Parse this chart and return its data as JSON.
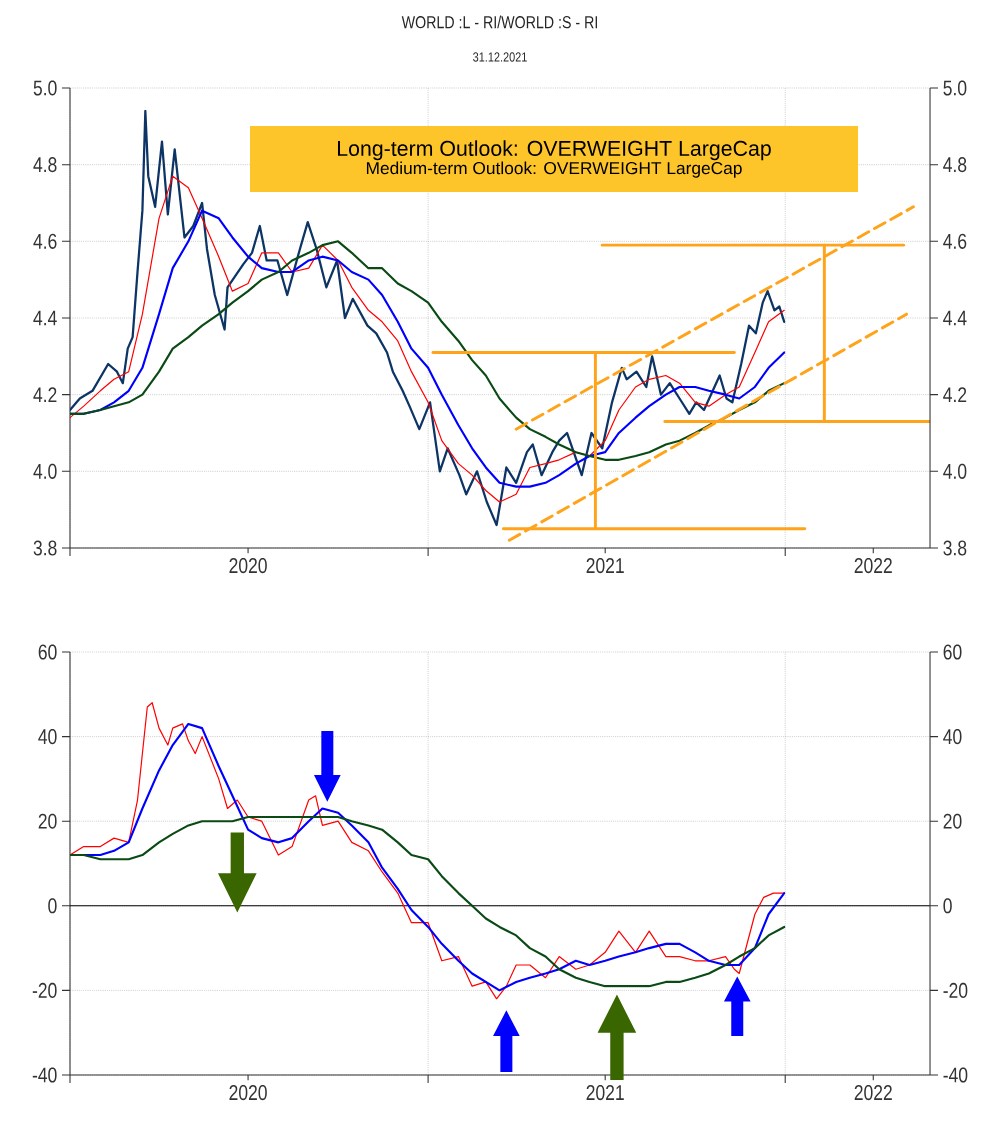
{
  "chart_data": [
    {
      "type": "line",
      "title": "WORLD :L - RI/WORLD :S - RI",
      "subtitle": "31.12.2021",
      "annotations": [
        "Long-term Outlook: OVERWEIGHT LargeCap",
        "Medium-term Outlook: OVERWEIGHT LargeCap"
      ],
      "xlim": [
        "2020-01-01",
        "2022-05-29"
      ],
      "xticks": [
        {
          "value": "2020-01-01",
          "label": null
        },
        {
          "value": "2020-07-01",
          "label": "2020"
        },
        {
          "value": "2021-01-01",
          "label": null
        },
        {
          "value": "2021-07-01",
          "label": "2021"
        },
        {
          "value": "2022-01-01",
          "label": null
        },
        {
          "value": "2022-04-01",
          "label": "2022"
        }
      ],
      "ylim": [
        3.8,
        5.0
      ],
      "yticks": [
        3.8,
        {
          "value": 4.0,
          "label": "4.0"
        },
        4.2,
        4.4,
        4.6,
        4.8,
        {
          "value": 5.0,
          "label": "5.0"
        }
      ],
      "y2lim": [
        3.8,
        5.0
      ],
      "y2ticks": [
        3.8,
        {
          "value": 4.0,
          "label": "4.0"
        },
        4.2,
        4.4,
        4.6,
        4.8,
        {
          "value": 5.0,
          "label": "5.0"
        }
      ],
      "grid": true,
      "series": [
        {
          "color": "#0c3566",
          "x": [
            "2020-01-01",
            "2020-01-11",
            "2020-01-24",
            "2020-02-09",
            "2020-02-18",
            "2020-02-24",
            "2020-02-29",
            "2020-03-05",
            "2020-03-10",
            "2020-03-15",
            "2020-03-18",
            "2020-03-21",
            "2020-03-28",
            "2020-04-04",
            "2020-04-10",
            "2020-04-17",
            "2020-04-27",
            "2020-05-06",
            "2020-05-15",
            "2020-05-20",
            "2020-05-28",
            "2020-06-07",
            "2020-06-10",
            "2020-06-26",
            "2020-07-05",
            "2020-07-13",
            "2020-07-20",
            "2020-07-31",
            "2020-08-10",
            "2020-08-23",
            "2020-08-31",
            "2020-09-09",
            "2020-09-19",
            "2020-09-30",
            "2020-10-08",
            "2020-10-16",
            "2020-10-31",
            "2020-11-09",
            "2020-11-20",
            "2020-11-26",
            "2020-12-06",
            "2020-12-13",
            "2020-12-23",
            "2021-01-03",
            "2021-01-13",
            "2021-01-21",
            "2021-02-02",
            "2021-02-09",
            "2021-02-20",
            "2021-03-02",
            "2021-03-12",
            "2021-03-22",
            "2021-04-01",
            "2021-04-12",
            "2021-04-18",
            "2021-04-27",
            "2021-05-08",
            "2021-05-15",
            "2021-05-23",
            "2021-06-07",
            "2021-06-17",
            "2021-06-28",
            "2021-07-08",
            "2021-07-18",
            "2021-07-23",
            "2021-08-02",
            "2021-08-12",
            "2021-08-18",
            "2021-08-27",
            "2021-09-05",
            "2021-09-15",
            "2021-09-25",
            "2021-10-02",
            "2021-10-10",
            "2021-10-26",
            "2021-11-02",
            "2021-11-08",
            "2021-11-17",
            "2021-11-25",
            "2021-12-02",
            "2021-12-09",
            "2021-12-14",
            "2021-12-21",
            "2021-12-26",
            "2021-12-31"
          ],
          "values": [
            4.16,
            4.19,
            4.21,
            4.28,
            4.26,
            4.23,
            4.32,
            4.35,
            4.52,
            4.68,
            4.94,
            4.77,
            4.69,
            4.86,
            4.67,
            4.84,
            4.61,
            4.64,
            4.7,
            4.58,
            4.46,
            4.37,
            4.48,
            4.54,
            4.57,
            4.64,
            4.55,
            4.55,
            4.46,
            4.58,
            4.65,
            4.58,
            4.48,
            4.55,
            4.4,
            4.45,
            4.38,
            4.36,
            4.31,
            4.26,
            4.21,
            4.17,
            4.11,
            4.18,
            4.0,
            4.06,
            3.99,
            3.94,
            4.0,
            3.92,
            3.86,
            4.01,
            3.97,
            4.05,
            4.07,
            3.99,
            4.05,
            4.08,
            4.1,
            3.99,
            4.1,
            4.06,
            4.18,
            4.27,
            4.24,
            4.26,
            4.22,
            4.3,
            4.2,
            4.23,
            4.19,
            4.15,
            4.18,
            4.16,
            4.25,
            4.19,
            4.18,
            4.28,
            4.38,
            4.36,
            4.44,
            4.47,
            4.42,
            4.43,
            4.39
          ]
        },
        {
          "color": "#ff0000",
          "x": [
            "2020-01-01",
            "2020-01-15",
            "2020-02-01",
            "2020-02-15",
            "2020-03-01",
            "2020-03-15",
            "2020-04-01",
            "2020-04-15",
            "2020-05-01",
            "2020-05-15",
            "2020-06-01",
            "2020-06-15",
            "2020-07-01",
            "2020-07-15",
            "2020-08-01",
            "2020-08-15",
            "2020-09-01",
            "2020-09-15",
            "2020-10-01",
            "2020-10-15",
            "2020-11-01",
            "2020-11-15",
            "2020-12-01",
            "2020-12-15",
            "2021-01-01",
            "2021-01-15",
            "2021-02-01",
            "2021-02-15",
            "2021-03-01",
            "2021-03-15",
            "2021-04-01",
            "2021-04-15",
            "2021-05-01",
            "2021-05-15",
            "2021-06-01",
            "2021-06-15",
            "2021-07-01",
            "2021-07-15",
            "2021-08-01",
            "2021-08-15",
            "2021-09-01",
            "2021-09-15",
            "2021-10-01",
            "2021-10-15",
            "2021-11-01",
            "2021-11-15",
            "2021-12-01",
            "2021-12-15",
            "2021-12-31"
          ],
          "values": [
            4.14,
            4.17,
            4.21,
            4.24,
            4.26,
            4.41,
            4.66,
            4.77,
            4.74,
            4.66,
            4.56,
            4.47,
            4.49,
            4.57,
            4.57,
            4.52,
            4.53,
            4.59,
            4.55,
            4.48,
            4.42,
            4.39,
            4.34,
            4.26,
            4.18,
            4.08,
            4.02,
            3.99,
            3.95,
            3.92,
            3.94,
            4.01,
            4.02,
            4.03,
            4.05,
            4.04,
            4.08,
            4.16,
            4.22,
            4.24,
            4.25,
            4.23,
            4.18,
            4.17,
            4.2,
            4.22,
            4.31,
            4.39,
            4.42
          ]
        },
        {
          "color": "#0000ff",
          "x": [
            "2020-01-01",
            "2020-01-15",
            "2020-02-01",
            "2020-02-15",
            "2020-03-01",
            "2020-03-15",
            "2020-04-01",
            "2020-04-15",
            "2020-05-01",
            "2020-05-15",
            "2020-06-01",
            "2020-06-15",
            "2020-07-01",
            "2020-07-15",
            "2020-08-01",
            "2020-08-15",
            "2020-09-01",
            "2020-09-15",
            "2020-10-01",
            "2020-10-15",
            "2020-11-01",
            "2020-11-15",
            "2020-12-01",
            "2020-12-15",
            "2021-01-01",
            "2021-01-15",
            "2021-02-01",
            "2021-02-15",
            "2021-03-01",
            "2021-03-15",
            "2021-04-01",
            "2021-04-15",
            "2021-05-01",
            "2021-05-15",
            "2021-06-01",
            "2021-06-15",
            "2021-07-01",
            "2021-07-15",
            "2021-08-01",
            "2021-08-15",
            "2021-09-01",
            "2021-09-15",
            "2021-10-01",
            "2021-10-15",
            "2021-11-01",
            "2021-11-15",
            "2021-12-01",
            "2021-12-15",
            "2021-12-31"
          ],
          "values": [
            4.15,
            4.15,
            4.16,
            4.18,
            4.21,
            4.27,
            4.41,
            4.53,
            4.6,
            4.68,
            4.66,
            4.61,
            4.56,
            4.53,
            4.52,
            4.52,
            4.55,
            4.56,
            4.55,
            4.52,
            4.5,
            4.46,
            4.39,
            4.32,
            4.27,
            4.2,
            4.12,
            4.06,
            4.01,
            3.97,
            3.96,
            3.96,
            3.97,
            3.99,
            4.02,
            4.04,
            4.05,
            4.1,
            4.14,
            4.17,
            4.2,
            4.22,
            4.22,
            4.21,
            4.2,
            4.19,
            4.22,
            4.27,
            4.31
          ]
        },
        {
          "color": "#0a4a14",
          "x": [
            "2020-01-01",
            "2020-01-15",
            "2020-02-01",
            "2020-02-15",
            "2020-03-01",
            "2020-03-15",
            "2020-04-01",
            "2020-04-15",
            "2020-05-01",
            "2020-05-15",
            "2020-06-01",
            "2020-06-15",
            "2020-07-01",
            "2020-07-15",
            "2020-08-01",
            "2020-08-15",
            "2020-09-01",
            "2020-09-15",
            "2020-10-01",
            "2020-10-15",
            "2020-11-01",
            "2020-11-15",
            "2020-12-01",
            "2020-12-15",
            "2021-01-01",
            "2021-01-15",
            "2021-02-01",
            "2021-02-15",
            "2021-03-01",
            "2021-03-15",
            "2021-04-01",
            "2021-04-15",
            "2021-05-01",
            "2021-05-15",
            "2021-06-01",
            "2021-06-15",
            "2021-07-01",
            "2021-07-15",
            "2021-08-01",
            "2021-08-15",
            "2021-09-01",
            "2021-09-15",
            "2021-10-01",
            "2021-10-15",
            "2021-11-01",
            "2021-11-15",
            "2021-12-01",
            "2021-12-15",
            "2021-12-31"
          ],
          "values": [
            4.15,
            4.15,
            4.16,
            4.17,
            4.18,
            4.2,
            4.26,
            4.32,
            4.35,
            4.38,
            4.41,
            4.44,
            4.47,
            4.5,
            4.52,
            4.55,
            4.57,
            4.59,
            4.6,
            4.57,
            4.53,
            4.53,
            4.49,
            4.47,
            4.44,
            4.39,
            4.34,
            4.29,
            4.25,
            4.19,
            4.14,
            4.11,
            4.09,
            4.07,
            4.05,
            4.04,
            4.03,
            4.03,
            4.04,
            4.05,
            4.07,
            4.08,
            4.1,
            4.12,
            4.14,
            4.16,
            4.18,
            4.21,
            4.23
          ]
        },
        {
          "color": "#ffa31a",
          "x": [
            "2021-01-06",
            "2021-11-10"
          ],
          "values": [
            4.31,
            4.31
          ]
        },
        {
          "color": "#ffa31a",
          "x": [
            "2021-06-28",
            "2022-05-02"
          ],
          "values": [
            4.59,
            4.59
          ]
        },
        {
          "color": "#ffa31a",
          "x": [
            "2021-08-31",
            "2022-05-29"
          ],
          "values": [
            4.13,
            4.13
          ]
        },
        {
          "color": "#ffa31a",
          "x": [
            "2021-03-19",
            "2022-01-21"
          ],
          "values": [
            3.85,
            3.85
          ]
        },
        {
          "color": "#ffa31a",
          "x": [
            "2021-06-21",
            "2021-06-21"
          ],
          "values": [
            3.85,
            4.31
          ]
        },
        {
          "color": "#ffa31a",
          "x": [
            "2022-02-10",
            "2022-02-10"
          ],
          "values": [
            4.13,
            4.59
          ]
        },
        {
          "color": "#ffa31a",
          "line_style": "dashed",
          "x": [
            "2021-04-01",
            "2022-05-12"
          ],
          "values": [
            4.11,
            4.69
          ]
        },
        {
          "color": "#ffa31a",
          "line_style": "dashed",
          "x": [
            "2021-03-25",
            "2022-05-05"
          ],
          "values": [
            3.82,
            4.41
          ]
        }
      ]
    },
    {
      "type": "line",
      "xlim": [
        "2020-01-01",
        "2022-05-29"
      ],
      "xticks": [
        {
          "value": "2020-01-01",
          "label": null
        },
        {
          "value": "2020-07-01",
          "label": "2020"
        },
        {
          "value": "2021-01-01",
          "label": null
        },
        {
          "value": "2021-07-01",
          "label": "2021"
        },
        {
          "value": "2022-01-01",
          "label": null
        },
        {
          "value": "2022-04-01",
          "label": "2022"
        }
      ],
      "ylim": [
        -40,
        60
      ],
      "yticks": [
        -40,
        -20,
        0,
        20,
        40,
        60
      ],
      "y2lim": [
        -40,
        60
      ],
      "y2ticks": [
        -40,
        -20,
        0,
        20,
        40,
        60
      ],
      "grid": true,
      "ref_lines": [
        {
          "axis": "y",
          "value": 0,
          "color": "#000000"
        }
      ],
      "series": [
        {
          "color": "#ff0000",
          "x": [
            "2020-01-01",
            "2020-01-15",
            "2020-02-01",
            "2020-02-15",
            "2020-03-01",
            "2020-03-10",
            "2020-03-20",
            "2020-03-25",
            "2020-04-01",
            "2020-04-10",
            "2020-04-15",
            "2020-04-25",
            "2020-05-01",
            "2020-05-08",
            "2020-05-15",
            "2020-06-01",
            "2020-06-10",
            "2020-06-20",
            "2020-07-01",
            "2020-07-15",
            "2020-08-01",
            "2020-08-15",
            "2020-09-01",
            "2020-09-08",
            "2020-09-15",
            "2020-10-01",
            "2020-10-15",
            "2020-11-01",
            "2020-11-15",
            "2020-12-01",
            "2020-12-15",
            "2021-01-01",
            "2021-01-15",
            "2021-02-01",
            "2021-02-15",
            "2021-03-01",
            "2021-03-12",
            "2021-03-22",
            "2021-04-01",
            "2021-04-15",
            "2021-05-01",
            "2021-05-15",
            "2021-06-01",
            "2021-06-15",
            "2021-07-01",
            "2021-07-15",
            "2021-08-01",
            "2021-08-15",
            "2021-09-01",
            "2021-09-15",
            "2021-10-01",
            "2021-10-15",
            "2021-11-01",
            "2021-11-10",
            "2021-11-15",
            "2021-12-01",
            "2021-12-10",
            "2021-12-20",
            "2021-12-31"
          ],
          "values": [
            12,
            14,
            14,
            16,
            15,
            25,
            47,
            48,
            42,
            38,
            42,
            43,
            39,
            36,
            40,
            30,
            23,
            25,
            21,
            20,
            12,
            14,
            25,
            26,
            19,
            20,
            15,
            13,
            8,
            3,
            -4,
            -4,
            -13,
            -12,
            -19,
            -18,
            -22,
            -19,
            -14,
            -14,
            -17,
            -12,
            -15,
            -14,
            -11,
            -6,
            -11,
            -6,
            -12,
            -12,
            -13,
            -13,
            -12,
            -15,
            -16,
            -2,
            2,
            3,
            3
          ]
        },
        {
          "color": "#0000ff",
          "x": [
            "2020-01-01",
            "2020-01-15",
            "2020-02-01",
            "2020-02-15",
            "2020-03-01",
            "2020-03-15",
            "2020-04-01",
            "2020-04-15",
            "2020-05-01",
            "2020-05-15",
            "2020-06-01",
            "2020-06-15",
            "2020-07-01",
            "2020-07-15",
            "2020-08-01",
            "2020-08-15",
            "2020-09-01",
            "2020-09-15",
            "2020-10-01",
            "2020-10-15",
            "2020-11-01",
            "2020-11-15",
            "2020-12-01",
            "2020-12-15",
            "2021-01-01",
            "2021-01-15",
            "2021-02-01",
            "2021-02-15",
            "2021-03-01",
            "2021-03-15",
            "2021-04-01",
            "2021-04-15",
            "2021-05-01",
            "2021-05-15",
            "2021-06-01",
            "2021-06-15",
            "2021-07-01",
            "2021-07-15",
            "2021-08-01",
            "2021-08-15",
            "2021-09-01",
            "2021-09-15",
            "2021-10-01",
            "2021-10-15",
            "2021-11-01",
            "2021-11-15",
            "2021-12-01",
            "2021-12-15",
            "2021-12-31"
          ],
          "values": [
            12,
            12,
            12,
            13,
            15,
            23,
            32,
            38,
            43,
            42,
            33,
            26,
            18,
            16,
            15,
            16,
            20,
            23,
            22,
            19,
            15,
            9,
            4,
            -1,
            -5,
            -9,
            -13,
            -16,
            -18,
            -20,
            -18,
            -17,
            -16,
            -15,
            -13,
            -14,
            -13,
            -12,
            -11,
            -10,
            -9,
            -9,
            -11,
            -13,
            -14,
            -14,
            -10,
            -2,
            3
          ]
        },
        {
          "color": "#0a4a14",
          "x": [
            "2020-01-01",
            "2020-01-15",
            "2020-02-01",
            "2020-02-15",
            "2020-03-01",
            "2020-03-15",
            "2020-04-01",
            "2020-04-15",
            "2020-05-01",
            "2020-05-15",
            "2020-06-01",
            "2020-06-15",
            "2020-07-01",
            "2020-07-15",
            "2020-08-01",
            "2020-08-15",
            "2020-09-01",
            "2020-09-15",
            "2020-10-01",
            "2020-10-15",
            "2020-11-01",
            "2020-11-15",
            "2020-12-01",
            "2020-12-15",
            "2021-01-01",
            "2021-01-15",
            "2021-02-01",
            "2021-02-15",
            "2021-03-01",
            "2021-03-15",
            "2021-04-01",
            "2021-04-15",
            "2021-05-01",
            "2021-05-15",
            "2021-06-01",
            "2021-06-15",
            "2021-07-01",
            "2021-07-15",
            "2021-08-01",
            "2021-08-15",
            "2021-09-01",
            "2021-09-15",
            "2021-10-01",
            "2021-10-15",
            "2021-11-01",
            "2021-11-15",
            "2021-12-01",
            "2021-12-15",
            "2021-12-31"
          ],
          "values": [
            12,
            12,
            11,
            11,
            11,
            12,
            15,
            17,
            19,
            20,
            20,
            20,
            21,
            21,
            21,
            21,
            21,
            21,
            21,
            20,
            19,
            18,
            15,
            12,
            11,
            7,
            3,
            0,
            -3,
            -5,
            -7,
            -10,
            -12,
            -15,
            -17,
            -18,
            -19,
            -19,
            -19,
            -19,
            -18,
            -18,
            -17,
            -16,
            -14,
            -12,
            -10,
            -7,
            -5
          ]
        }
      ]
    }
  ]
}
